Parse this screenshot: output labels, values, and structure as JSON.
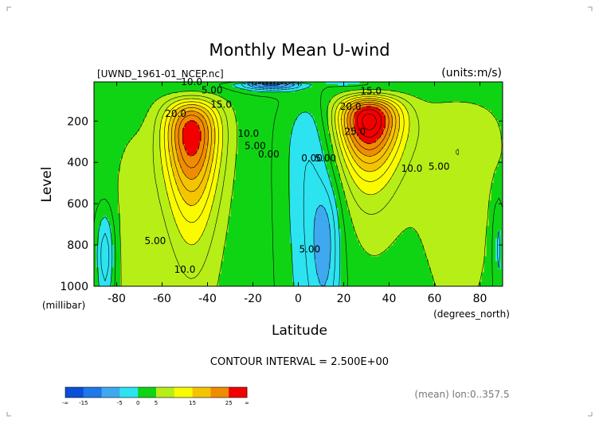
{
  "page": {
    "title": "Monthly Mean U-wind",
    "source_label": "[UWND_1961-01_NCEP.nc]",
    "units_label": "(units:m/s)",
    "contour_interval_label": "CONTOUR INTERVAL = 2.500E+00",
    "averaging_label": "(mean) lon:0..357.5"
  },
  "colors": {
    "background": "#ffffff",
    "frame": "#000000"
  },
  "chart_data": {
    "type": "heatmap",
    "subtype": "filled-contour",
    "title": "Monthly Mean U-wind",
    "xlabel": "Latitude",
    "xunit_label": "(degrees_north)",
    "ylabel": "Level",
    "yunit_label": "(millibar)",
    "xlim": [
      -90,
      90
    ],
    "ylim": [
      1000,
      10
    ],
    "xticks": [
      -80,
      -60,
      -40,
      -20,
      0,
      20,
      40,
      60,
      80
    ],
    "xtick_labels": [
      "-80",
      "-60",
      "-40",
      "-20",
      "0",
      "20",
      "40",
      "60",
      "80"
    ],
    "yticks": [
      200,
      400,
      600,
      800,
      1000
    ],
    "ytick_labels": [
      "200",
      "400",
      "600",
      "800",
      "1000"
    ],
    "contour_interval": 2.5,
    "color_levels": [
      {
        "min": null,
        "max": -15,
        "color": "#0a4fd8"
      },
      {
        "min": -15,
        "max": -10,
        "color": "#1e78e8"
      },
      {
        "min": -10,
        "max": -5,
        "color": "#3fa9ef"
      },
      {
        "min": -5,
        "max": 0,
        "color": "#2de3f0"
      },
      {
        "min": 0,
        "max": 5,
        "color": "#0fd414"
      },
      {
        "min": 5,
        "max": 10,
        "color": "#b7ee17"
      },
      {
        "min": 10,
        "max": 15,
        "color": "#fafa00"
      },
      {
        "min": 15,
        "max": 20,
        "color": "#f5c400"
      },
      {
        "min": 20,
        "max": 25,
        "color": "#f08c00"
      },
      {
        "min": 25,
        "max": null,
        "color": "#f20000"
      }
    ],
    "colorbar_labels": [
      "-∞",
      "-15",
      "-5",
      "0",
      "5",
      "15",
      "25",
      "∞"
    ],
    "contour_labels": [
      {
        "text": "10.0",
        "lat": -47,
        "lev": 10
      },
      {
        "text": "5.00",
        "lat": -38,
        "lev": 50
      },
      {
        "text": "15.0",
        "lat": -34,
        "lev": 120
      },
      {
        "text": "20.0",
        "lat": -54,
        "lev": 165
      },
      {
        "text": "10.0",
        "lat": -22,
        "lev": 260
      },
      {
        "text": "5.00",
        "lat": -19,
        "lev": 320
      },
      {
        "text": "0.00",
        "lat": -13,
        "lev": 360
      },
      {
        "text": "0.00",
        "lat": 6,
        "lev": 380
      },
      {
        "text": "5.00",
        "lat": 12,
        "lev": 380
      },
      {
        "text": "20.0",
        "lat": 23,
        "lev": 130
      },
      {
        "text": "15.0",
        "lat": 32,
        "lev": 55
      },
      {
        "text": "25.0",
        "lat": 25,
        "lev": 250
      },
      {
        "text": "10.0",
        "lat": 50,
        "lev": 430
      },
      {
        "text": "5.00",
        "lat": 62,
        "lev": 420
      },
      {
        "text": "5.00",
        "lat": -63,
        "lev": 780
      },
      {
        "text": "10.0",
        "lat": -50,
        "lev": 920
      },
      {
        "text": "5.00",
        "lat": 5,
        "lev": 820
      }
    ],
    "features": [
      {
        "name": "southern-hemisphere-jet",
        "lat": -47,
        "lev": 270,
        "max_speed_at_least": 25
      },
      {
        "name": "northern-hemisphere-jet",
        "lat": 30,
        "lev": 200,
        "max_speed_at_least": 25
      },
      {
        "name": "tropical-easterlies",
        "lat": 10,
        "lev": 800,
        "min_speed_at_most": -5
      },
      {
        "name": "upper-easterlies",
        "lat": -5,
        "lev": 20,
        "min_speed_at_most": -15
      }
    ]
  }
}
